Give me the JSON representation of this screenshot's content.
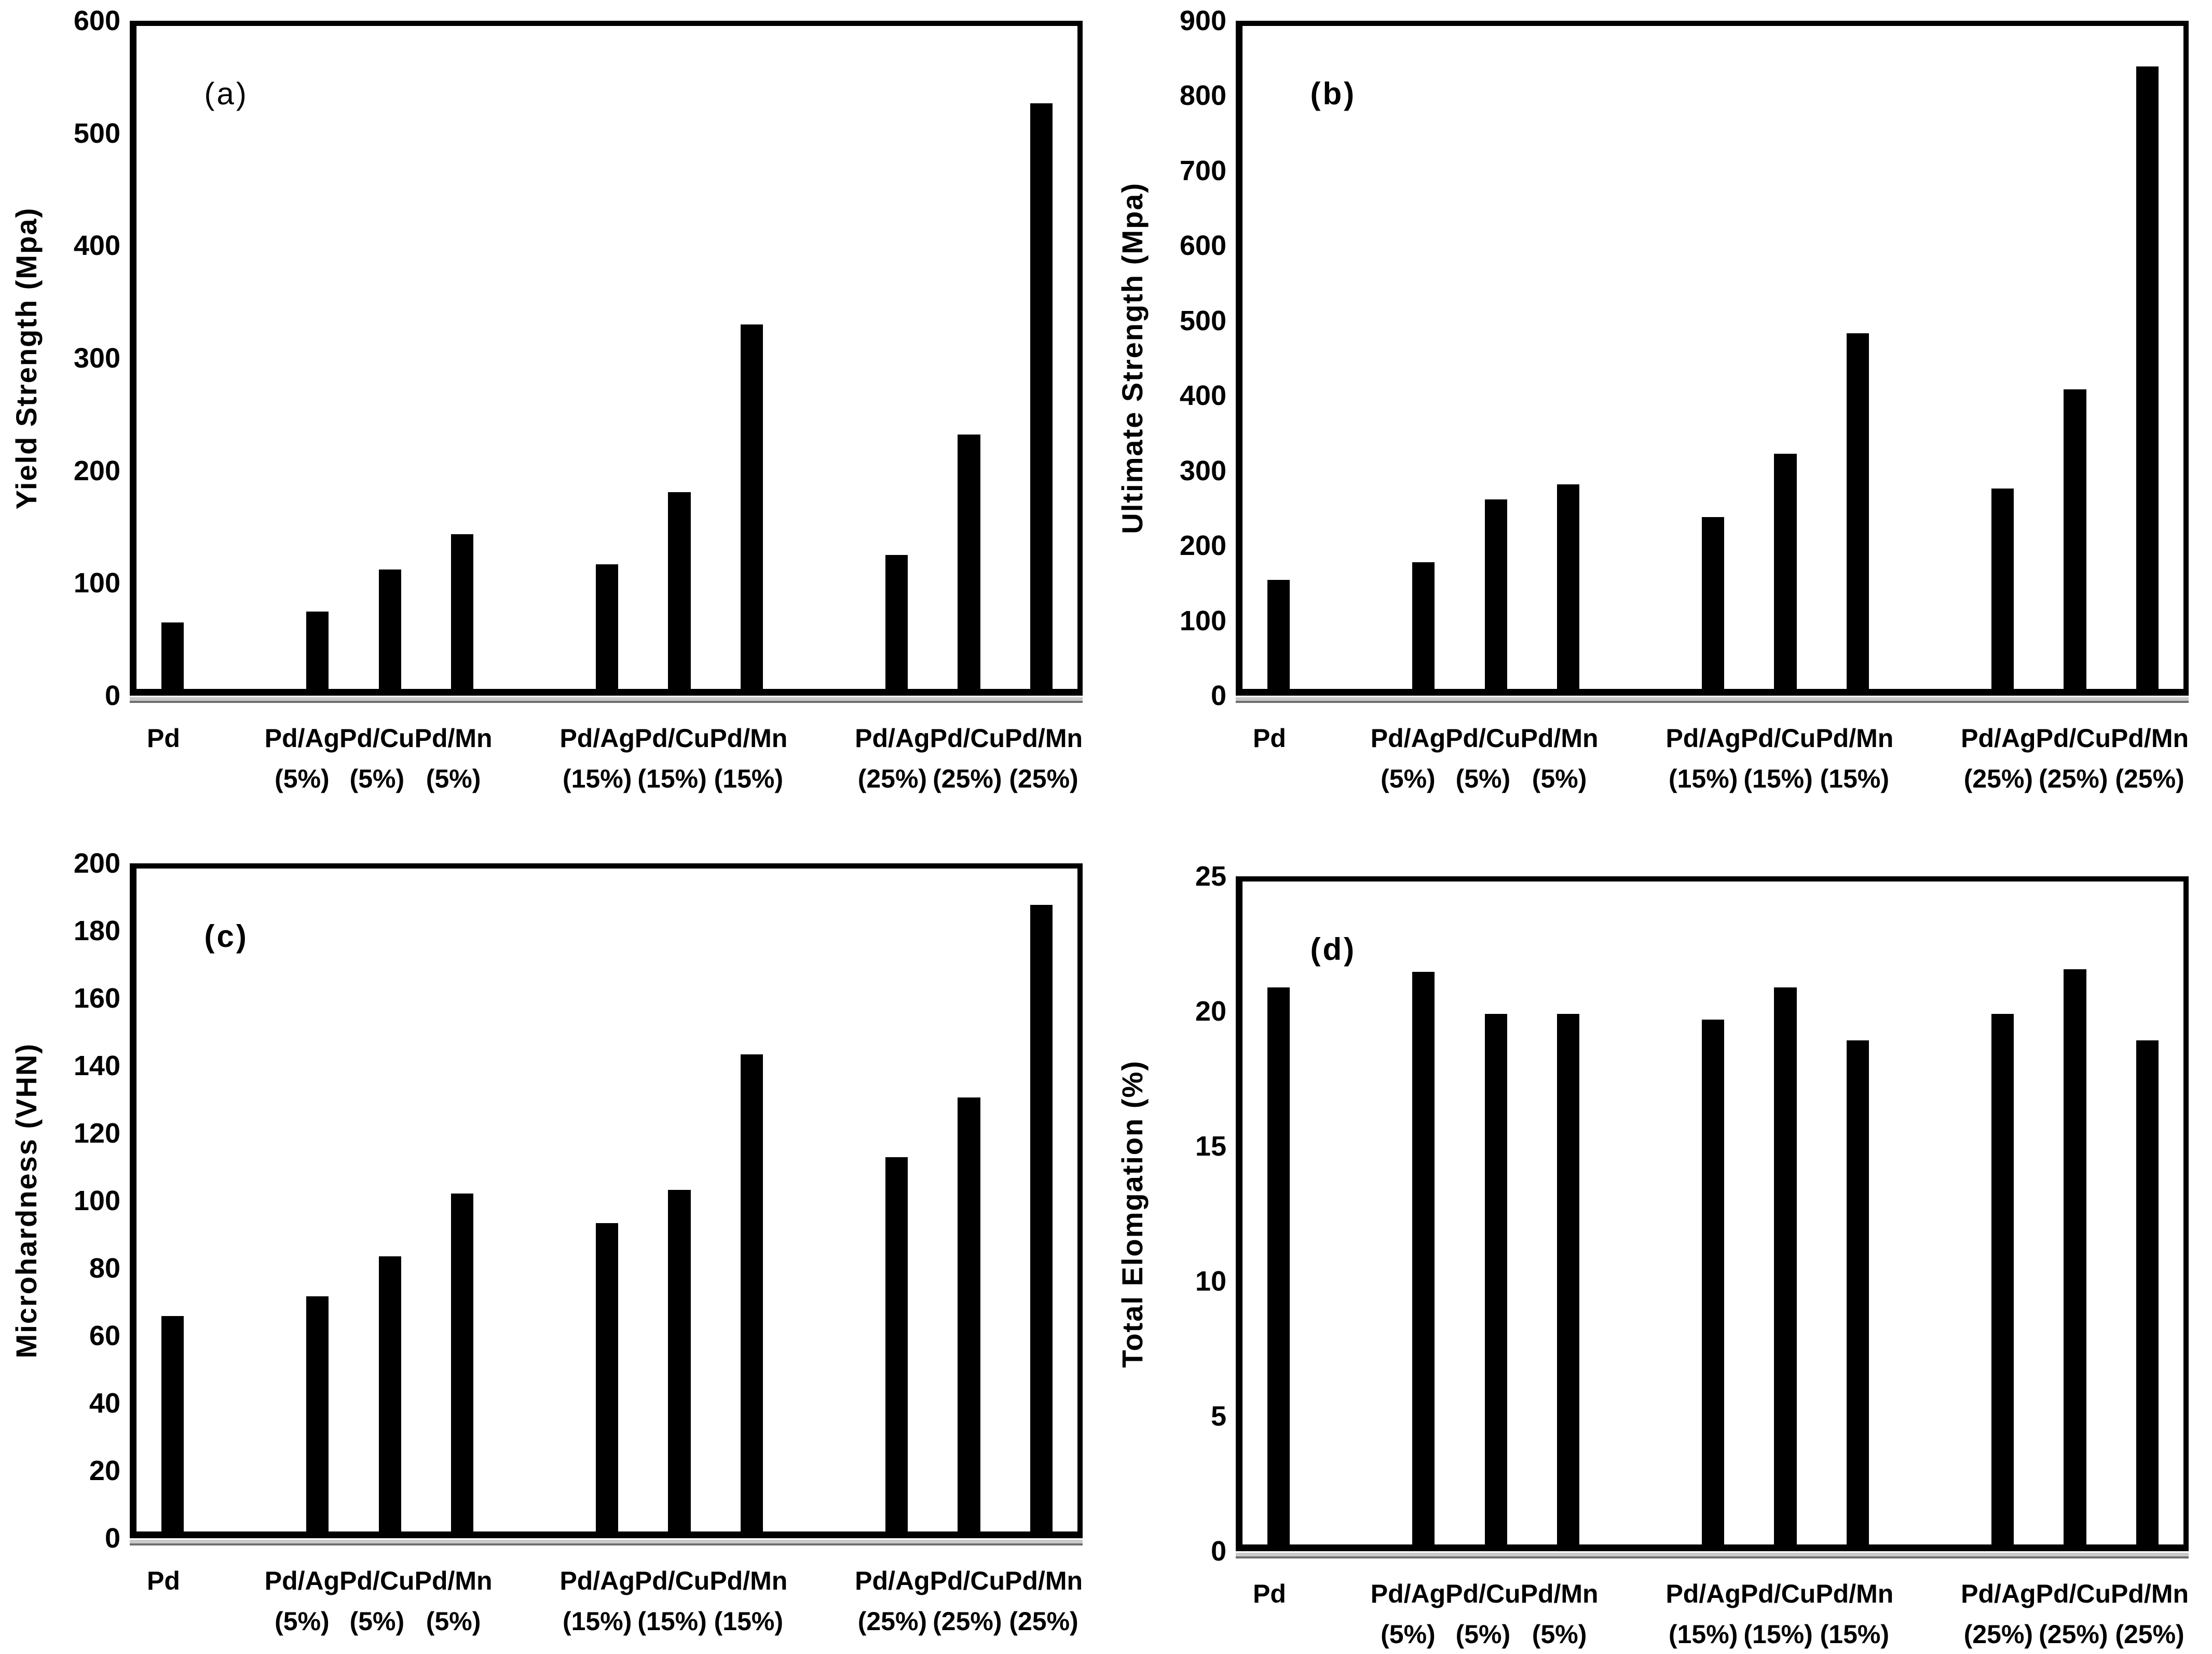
{
  "figure": {
    "background_color": "#ffffff",
    "bar_color": "#000000",
    "text_color": "#000000"
  },
  "layout_hints": {
    "num_slots": 13,
    "bar_slots": [
      0,
      2,
      3,
      4,
      6,
      7,
      8,
      10,
      11,
      12
    ],
    "grid": false,
    "legend": "none",
    "panels": "2x2"
  },
  "chart_data": [
    {
      "type": "bar",
      "panel_letter": "(a)",
      "panel_letter_bold": false,
      "ylabel": "Yield Strength (Mpa)",
      "xlabel": "",
      "ylim": [
        0,
        600
      ],
      "yticks": [
        0,
        100,
        200,
        300,
        400,
        500,
        600
      ],
      "categories": [
        "Pd",
        "Pd/Ag (5%)",
        "Pd/Cu (5%)",
        "Pd/Mn (5%)",
        "Pd/Ag (15%)",
        "Pd/Cu (15%)",
        "Pd/Mn (15%)",
        "Pd/Ag (25%)",
        "Pd/Cu (25%)",
        "Pd/Mn (25%)"
      ],
      "values": [
        60,
        70,
        108,
        140,
        113,
        178,
        330,
        121,
        230,
        530
      ]
    },
    {
      "type": "bar",
      "panel_letter": "(b)",
      "panel_letter_bold": true,
      "ylabel": "Ultimate Strength (Mpa)",
      "xlabel": "",
      "ylim": [
        0,
        900
      ],
      "yticks": [
        0,
        100,
        200,
        300,
        400,
        500,
        600,
        700,
        800,
        900
      ],
      "categories": [
        "Pd",
        "Pd/Ag (5%)",
        "Pd/Cu (5%)",
        "Pd/Mn (5%)",
        "Pd/Ag (15%)",
        "Pd/Cu (15%)",
        "Pd/Mn (15%)",
        "Pd/Ag (25%)",
        "Pd/Cu (25%)",
        "Pd/Mn (25%)"
      ],
      "values": [
        148,
        172,
        257,
        278,
        233,
        319,
        483,
        272,
        407,
        845
      ]
    },
    {
      "type": "bar",
      "panel_letter": "(c)",
      "panel_letter_bold": true,
      "ylabel": "Microhardness (VHN)",
      "xlabel": "",
      "ylim": [
        0,
        200
      ],
      "yticks": [
        0,
        20,
        40,
        60,
        80,
        100,
        120,
        140,
        160,
        180,
        200
      ],
      "categories": [
        "Pd",
        "Pd/Ag (5%)",
        "Pd/Cu (5%)",
        "Pd/Mn (5%)",
        "Pd/Ag (15%)",
        "Pd/Cu (15%)",
        "Pd/Mn (15%)",
        "Pd/Ag (25%)",
        "Pd/Cu (25%)",
        "Pd/Mn (25%)"
      ],
      "values": [
        65,
        71,
        83,
        102,
        93,
        103,
        144,
        113,
        131,
        189
      ]
    },
    {
      "type": "bar",
      "panel_letter": "(d)",
      "panel_letter_bold": true,
      "ylabel": "Total Elomgation (%)",
      "xlabel": "",
      "ylim": [
        0,
        25
      ],
      "yticks": [
        0,
        5,
        10,
        15,
        20,
        25
      ],
      "categories": [
        "Pd",
        "Pd/Ag (5%)",
        "Pd/Cu (5%)",
        "Pd/Mn (5%)",
        "Pd/Ag (15%)",
        "Pd/Cu (15%)",
        "Pd/Mn (15%)",
        "Pd/Ag (25%)",
        "Pd/Cu (25%)",
        "Pd/Mn (25%)"
      ],
      "values": [
        21,
        21.6,
        20,
        20,
        19.8,
        21,
        19,
        20,
        21.7,
        19
      ]
    }
  ]
}
